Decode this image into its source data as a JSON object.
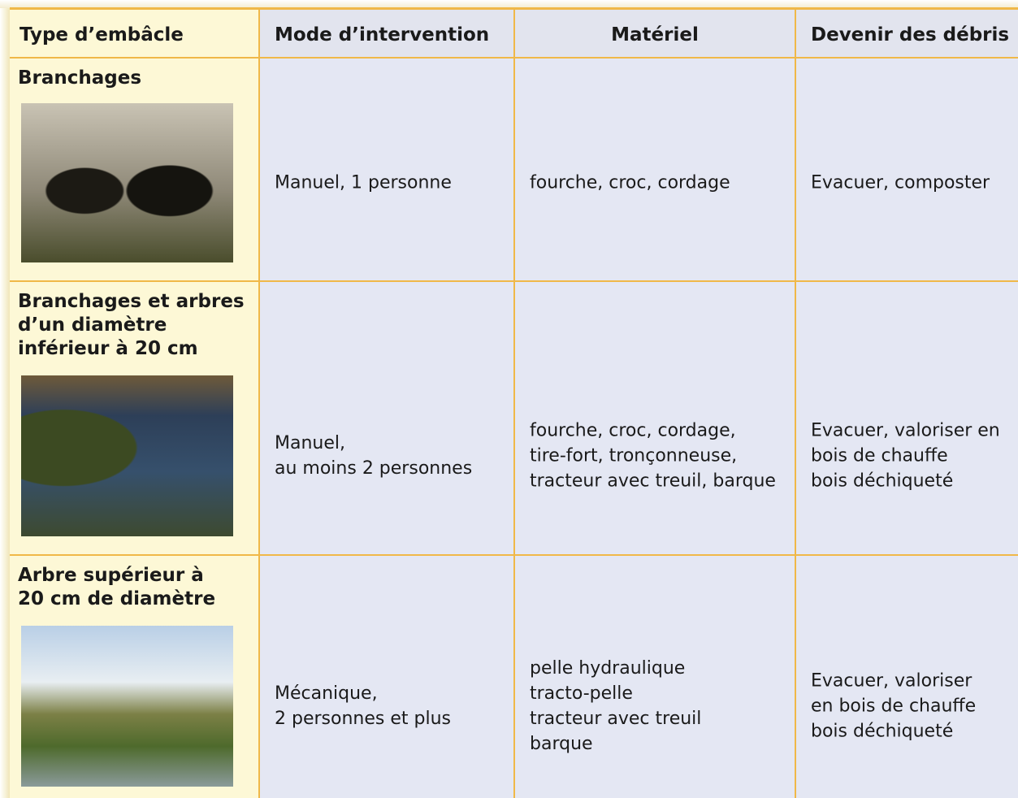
{
  "table": {
    "headers": [
      "Type d’embâcle",
      "Mode d’intervention",
      "Matériel",
      "Devenir des débris"
    ],
    "rows": [
      {
        "type": [
          "Branchages"
        ],
        "mode": [
          "Manuel, 1 personne"
        ],
        "materiel": [
          "fourche, croc, cordage"
        ],
        "devenir": [
          "Evacuer, composter"
        ]
      },
      {
        "type": [
          "Branchages et arbres",
          "d’un diamètre",
          "inférieur à 20 cm"
        ],
        "mode": [
          "Manuel,",
          "au moins 2 personnes"
        ],
        "materiel": [
          "fourche, croc, cordage,",
          "tire-fort, tronçonneuse,",
          "tracteur avec treuil, barque"
        ],
        "devenir": [
          "Evacuer, valoriser en",
          "bois de chauffe",
          "bois déchiqueté"
        ]
      },
      {
        "type": [
          "Arbre supérieur à",
          "20 cm de diamètre"
        ],
        "mode": [
          "Mécanique,",
          "2 personnes et plus"
        ],
        "materiel": [
          "pelle hydraulique",
          "tracto-pelle",
          "tracteur avec treuil",
          "barque"
        ],
        "devenir": [
          "Evacuer, valoriser",
          "en bois de chauffe",
          "bois déchiqueté"
        ]
      }
    ]
  }
}
